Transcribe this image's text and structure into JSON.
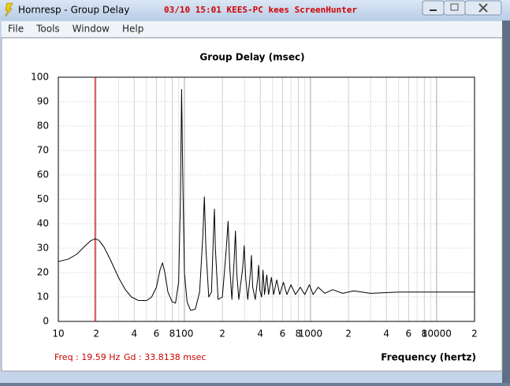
{
  "window": {
    "title": "Hornresp - Group Delay",
    "caption_note": "03/10 15:01 KEES-PC kees ScreenHunter"
  },
  "menu": [
    "File",
    "Tools",
    "Window",
    "Help"
  ],
  "chart_data": {
    "type": "line",
    "title": "Group Delay (msec)",
    "xlabel": "Frequency (hertz)",
    "x_scale": "log",
    "xlim": [
      10,
      20000
    ],
    "ylim": [
      0,
      100
    ],
    "yticks": [
      0,
      10,
      20,
      30,
      40,
      50,
      60,
      70,
      80,
      90,
      100
    ],
    "xticks": [
      10,
      {
        "value": 20,
        "label": "2"
      },
      {
        "value": 40,
        "label": "4"
      },
      {
        "value": 60,
        "label": "6"
      },
      {
        "value": 80,
        "label": "8"
      },
      100,
      {
        "value": 200,
        "label": "2"
      },
      {
        "value": 400,
        "label": "4"
      },
      {
        "value": 600,
        "label": "6"
      },
      {
        "value": 800,
        "label": "8"
      },
      1000,
      {
        "value": 2000,
        "label": "2"
      },
      {
        "value": 4000,
        "label": "4"
      },
      {
        "value": 6000,
        "label": "6"
      },
      {
        "value": 8000,
        "label": "8"
      },
      10000,
      {
        "value": 20000,
        "label": "2"
      }
    ],
    "x_minor_grid": [
      30,
      50,
      70,
      90,
      300,
      500,
      700,
      900,
      3000,
      5000,
      7000,
      9000
    ],
    "grid": true,
    "series": [
      {
        "color": "#000000",
        "x": [
          10,
          12,
          14,
          16,
          18,
          19.6,
          21,
          23,
          26,
          30,
          34,
          38,
          43,
          50,
          55,
          60,
          64,
          67,
          70,
          74,
          80,
          85,
          90,
          93,
          95,
          97,
          100,
          105,
          112,
          122,
          132,
          140,
          144,
          148,
          156,
          164,
          170,
          173,
          176,
          185,
          200,
          215,
          222,
          229,
          238,
          248,
          254,
          260,
          270,
          290,
          298,
          306,
          318,
          334,
          340,
          348,
          365,
          382,
          388,
          396,
          410,
          420,
          432,
          450,
          465,
          490,
          510,
          540,
          570,
          610,
          650,
          700,
          760,
          830,
          900,
          980,
          1050,
          1150,
          1300,
          1500,
          1800,
          2200,
          3000,
          5000,
          10000,
          20000
        ],
        "values": [
          24.5,
          25.5,
          27.5,
          30.5,
          33,
          33.8,
          33.2,
          30.5,
          25,
          18,
          13,
          10,
          8.6,
          8.5,
          10,
          14,
          21,
          24,
          20,
          12,
          8,
          7.5,
          16,
          50,
          95,
          60,
          20,
          8,
          4.5,
          5,
          12,
          35,
          51,
          30,
          10,
          12,
          36,
          46,
          30,
          9,
          10,
          30,
          41,
          22,
          9,
          25,
          37,
          20,
          9,
          22,
          31,
          18,
          9,
          20,
          27,
          14,
          9,
          18,
          23,
          13,
          10,
          21,
          11,
          19,
          11,
          18,
          11,
          17,
          11,
          16,
          11,
          15,
          11,
          14,
          11,
          15,
          11,
          14,
          11.5,
          13,
          11.5,
          12.5,
          11.5,
          12,
          12,
          12
        ]
      }
    ],
    "cursor": {
      "x": 19.59,
      "color": "#cc0000"
    },
    "readout": [
      "Freq : 19.59 Hz",
      "Gd : 33.8138 msec"
    ]
  }
}
